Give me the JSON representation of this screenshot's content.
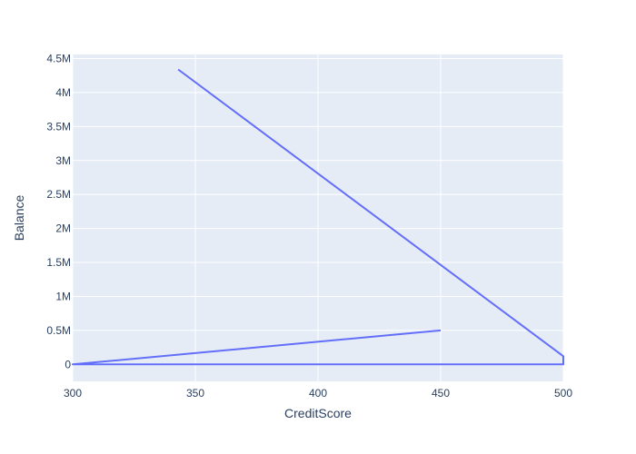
{
  "chart_data": {
    "type": "line",
    "title": "",
    "xlabel": "CreditScore",
    "ylabel": "Balance",
    "xlim": [
      300,
      500
    ],
    "ylim": [
      -250000,
      4560000
    ],
    "x_ticks": [
      300,
      350,
      400,
      450,
      500
    ],
    "x_tick_labels": [
      "300",
      "350",
      "400",
      "450",
      "500"
    ],
    "y_ticks": [
      0,
      500000,
      1000000,
      1500000,
      2000000,
      2500000,
      3000000,
      3500000,
      4000000,
      4500000
    ],
    "y_tick_labels": [
      "0",
      "0.5M",
      "1M",
      "1.5M",
      "2M",
      "2.5M",
      "3M",
      "3.5M",
      "4M",
      "4.5M"
    ],
    "grid": true,
    "series": [
      {
        "color": "#636efa",
        "x": [
          343,
          500,
          500,
          300,
          450
        ],
        "y": [
          4340000,
          120000,
          0,
          0,
          500000
        ]
      }
    ]
  },
  "colors": {
    "plot_background": "#e5ecf6",
    "grid": "#ffffff",
    "text": "#2a3f5f"
  }
}
